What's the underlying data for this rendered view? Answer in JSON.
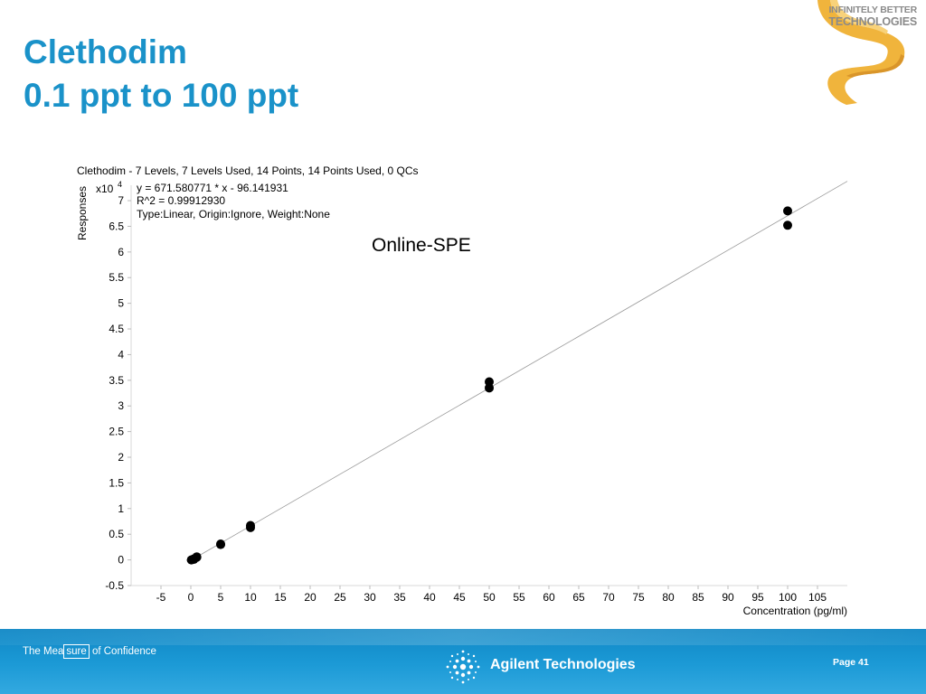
{
  "slide": {
    "title_line1": "Clethodim",
    "title_line2": "0.1 ppt to 100 ppt",
    "logo_line1": "INFINITELY BETTER",
    "logo_line2": "TECHNOLOGIES",
    "footer_tagline_pre": "The Mea",
    "footer_tagline_boxed": "sure",
    "footer_tagline_post": " of Confidence",
    "footer_brand": "Agilent Technologies",
    "page_label": "Page 41",
    "accent_color": "#1a92c9",
    "footer_color": "#1c9ad6",
    "ribbon_color": "#f0b43c"
  },
  "chart_data": {
    "type": "scatter",
    "title": "Clethodim - 7 Levels, 7 Levels Used, 14 Points, 14 Points Used, 0 QCs",
    "xlabel": "Concentration (pg/ml)",
    "ylabel": "Responses",
    "y_multiplier": "x10",
    "y_multiplier_exp": "4",
    "equation": "y = 671.580771 * x  - 96.141931",
    "r2": "R^2 = 0.99912930",
    "fit_type": "Type:Linear, Origin:Ignore, Weight:None",
    "annotation": "Online-SPE",
    "xlim": [
      -10,
      110
    ],
    "ylim": [
      -0.5,
      7.3
    ],
    "x_ticks": [
      -5,
      0,
      5,
      10,
      15,
      20,
      25,
      30,
      35,
      40,
      45,
      50,
      55,
      60,
      65,
      70,
      75,
      80,
      85,
      90,
      95,
      100,
      105
    ],
    "y_ticks": [
      -0.5,
      0,
      0.5,
      1,
      1.5,
      2,
      2.5,
      3,
      3.5,
      4,
      4.5,
      5,
      5.5,
      6,
      6.5,
      7
    ],
    "grid": false,
    "fit": {
      "slope": 671.580771,
      "intercept": -96.141931
    },
    "series": [
      {
        "points": [
          [
            0.1,
            0.0
          ],
          [
            0.1,
            0.0
          ],
          [
            0.5,
            0.02
          ],
          [
            0.5,
            0.01
          ],
          [
            1,
            0.06
          ],
          [
            1,
            0.05
          ],
          [
            5,
            0.31
          ],
          [
            5,
            0.3
          ],
          [
            10,
            0.67
          ],
          [
            10,
            0.63
          ],
          [
            50,
            3.47
          ],
          [
            50,
            3.35
          ],
          [
            100,
            6.8
          ],
          [
            100,
            6.52
          ]
        ]
      }
    ]
  }
}
